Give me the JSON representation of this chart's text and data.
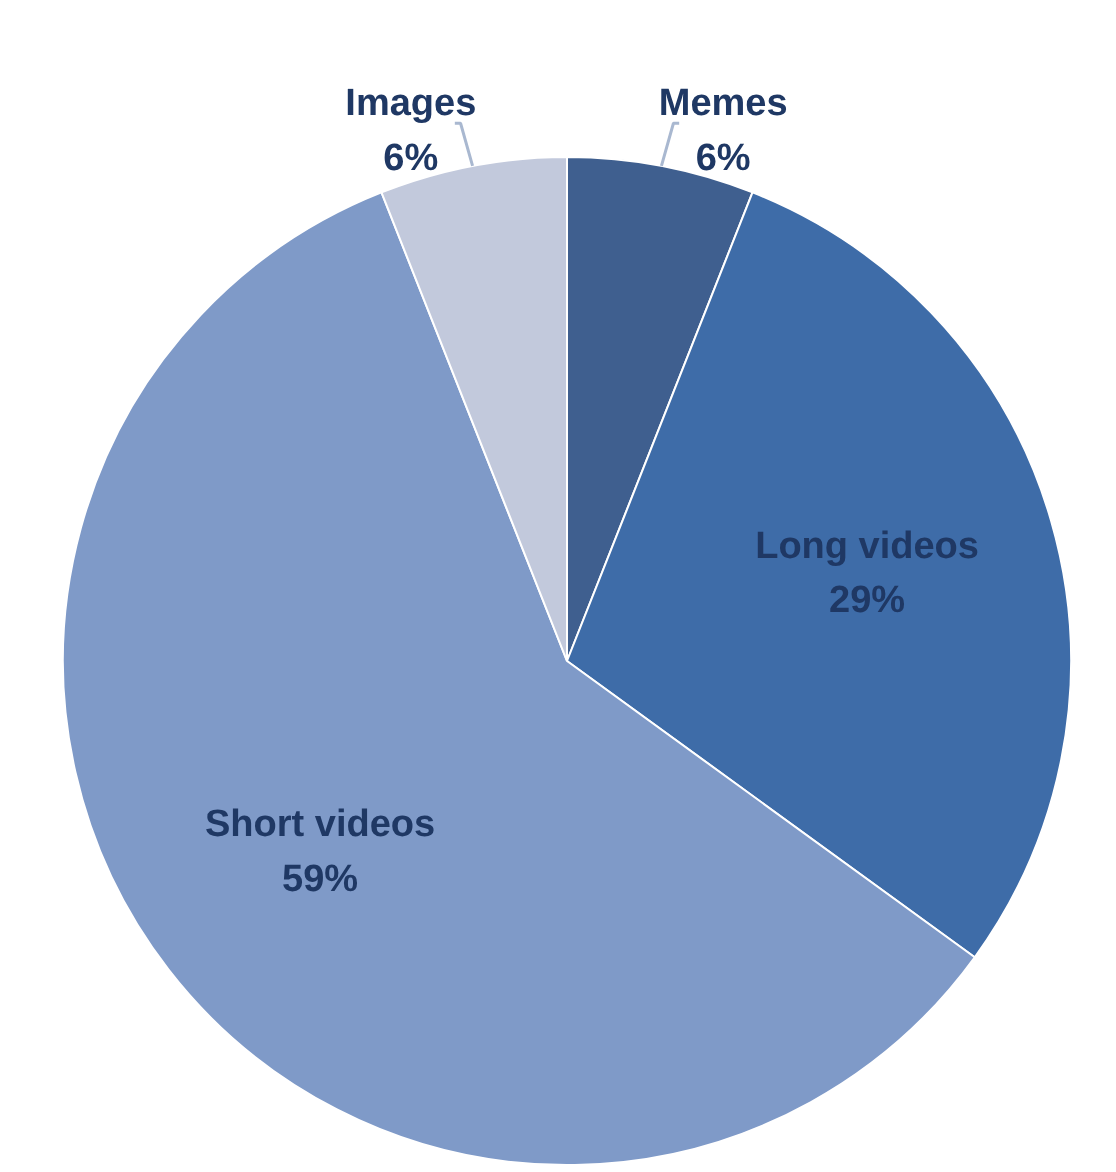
{
  "chart_data": {
    "type": "pie",
    "categories": [
      "Memes",
      "Long videos",
      "Short videos",
      "Images"
    ],
    "values": [
      6,
      29,
      59,
      6
    ],
    "value_labels": [
      "6%",
      "29%",
      "59%",
      "6%"
    ],
    "colors": [
      "#3f5f8f",
      "#3e6ca8",
      "#7f9ac8",
      "#c2c9dc"
    ]
  }
}
